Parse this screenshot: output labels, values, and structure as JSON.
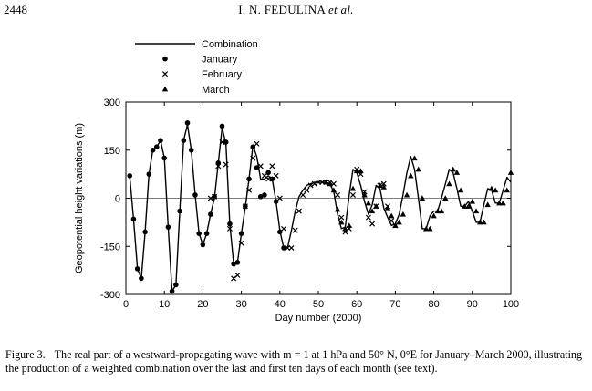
{
  "header": {
    "page_number": "2448",
    "authors": "I. N. FEDULINA",
    "et_al": "et al."
  },
  "chart_data": {
    "type": "line",
    "xlabel": "Day number (2000)",
    "ylabel": "Geopotential height variations (m)",
    "xlim": [
      0,
      100
    ],
    "ylim": [
      -300,
      300
    ],
    "xticks": [
      0,
      10,
      20,
      30,
      40,
      50,
      60,
      70,
      80,
      90,
      100
    ],
    "yticks": [
      -300,
      -150,
      0,
      150,
      300
    ],
    "grid": false,
    "legend": "top-left, outside plot",
    "series": [
      {
        "name": "Combination",
        "marker": "line",
        "x": [
          1,
          2,
          3,
          4,
          5,
          6,
          7,
          8,
          9,
          10,
          11,
          12,
          13,
          14,
          15,
          16,
          17,
          18,
          19,
          20,
          21,
          22,
          23,
          24,
          25,
          26,
          27,
          28,
          29,
          30,
          31,
          32,
          33,
          34,
          35,
          36,
          37,
          38,
          39,
          40,
          41,
          42,
          43,
          44,
          45,
          46,
          47,
          48,
          49,
          50,
          51,
          52,
          53,
          54,
          55,
          56,
          57,
          58,
          59,
          60,
          61,
          62,
          63,
          64,
          65,
          66,
          67,
          68,
          69,
          70,
          71,
          72,
          73,
          74,
          75,
          76,
          77,
          78,
          79,
          80,
          81,
          82,
          83,
          84,
          85,
          86,
          87,
          88,
          89,
          90,
          91,
          92,
          93,
          94,
          95,
          96,
          97,
          98,
          99,
          100
        ],
        "y": [
          70,
          -65,
          -220,
          -250,
          -105,
          75,
          150,
          160,
          180,
          125,
          -90,
          -290,
          -270,
          -40,
          180,
          230,
          150,
          10,
          -110,
          -145,
          -110,
          -50,
          0,
          110,
          220,
          170,
          -80,
          -205,
          -200,
          -110,
          -30,
          60,
          165,
          130,
          60,
          60,
          70,
          60,
          -10,
          -100,
          -155,
          -155,
          -100,
          -40,
          5,
          25,
          40,
          45,
          50,
          50,
          50,
          50,
          45,
          20,
          -50,
          -95,
          -90,
          10,
          90,
          80,
          40,
          -10,
          -50,
          -20,
          40,
          30,
          -30,
          -60,
          -85,
          -80,
          -50,
          10,
          80,
          130,
          90,
          0,
          -95,
          -95,
          -55,
          -40,
          -40,
          0,
          45,
          90,
          80,
          30,
          -25,
          -25,
          -10,
          -40,
          -75,
          -75,
          -20,
          30,
          25,
          -15,
          -15,
          25,
          65,
          50
        ]
      },
      {
        "name": "January",
        "marker": "circle",
        "x": [
          1,
          2,
          3,
          4,
          5,
          6,
          7,
          8,
          9,
          10,
          11,
          12,
          13,
          14,
          15,
          16,
          17,
          18,
          19,
          20,
          21,
          22,
          23,
          24,
          25,
          26,
          27,
          28,
          29,
          30,
          31,
          32,
          33,
          34,
          35,
          36,
          37,
          38,
          39,
          40,
          41
        ],
        "y": [
          70,
          -65,
          -220,
          -250,
          -105,
          75,
          150,
          160,
          180,
          125,
          -90,
          -290,
          -270,
          -40,
          180,
          235,
          150,
          10,
          -110,
          -145,
          -110,
          -50,
          5,
          110,
          225,
          175,
          -80,
          -205,
          -200,
          -110,
          -25,
          60,
          160,
          95,
          5,
          10,
          80,
          60,
          -10,
          -105,
          -155
        ]
      },
      {
        "name": "February",
        "marker": "x",
        "x": [
          22,
          23,
          24,
          25,
          26,
          27,
          28,
          29,
          30,
          31,
          32,
          33,
          34,
          35,
          36,
          37,
          38,
          39,
          40,
          41,
          42,
          43,
          44,
          45,
          46,
          47,
          48,
          49,
          50,
          51,
          52,
          53,
          54,
          55,
          56,
          57,
          58,
          59,
          60,
          61,
          62,
          63,
          64,
          65,
          66,
          67,
          68,
          69,
          70
        ],
        "y": [
          0,
          5,
          100,
          175,
          105,
          -95,
          -250,
          -240,
          -140,
          -25,
          25,
          125,
          170,
          100,
          70,
          60,
          100,
          70,
          0,
          -95,
          -155,
          -155,
          -100,
          -40,
          10,
          25,
          40,
          45,
          50,
          50,
          50,
          50,
          45,
          10,
          -60,
          -105,
          -95,
          10,
          90,
          75,
          20,
          -60,
          -80,
          -25,
          40,
          45,
          -25,
          -70,
          -85
        ]
      },
      {
        "name": "March",
        "marker": "triangle",
        "x": [
          52,
          53,
          54,
          55,
          56,
          57,
          58,
          59,
          60,
          61,
          62,
          63,
          64,
          65,
          66,
          67,
          68,
          69,
          70,
          71,
          72,
          73,
          74,
          75,
          76,
          77,
          78,
          79,
          80,
          81,
          82,
          83,
          84,
          85,
          86,
          87,
          88,
          89,
          90,
          91,
          92,
          93,
          94,
          95,
          96,
          97,
          98,
          99,
          100
        ],
        "y": [
          50,
          45,
          25,
          -35,
          -75,
          -95,
          -85,
          30,
          85,
          85,
          10,
          -15,
          -40,
          -25,
          40,
          35,
          -30,
          -55,
          -85,
          -75,
          -50,
          10,
          70,
          125,
          90,
          0,
          -95,
          -95,
          -55,
          -40,
          -40,
          0,
          45,
          90,
          80,
          25,
          -25,
          -25,
          -10,
          -40,
          -75,
          -75,
          -20,
          30,
          25,
          -15,
          -15,
          25,
          80
        ]
      }
    ]
  },
  "caption": {
    "label": "Figure 3.",
    "text": "The real part of a westward-propagating wave with m = 1 at 1 hPa and 50° N, 0°E for January–March 2000, illustrating the production of a weighted combination over the last and first ten days of each month (see text)."
  }
}
